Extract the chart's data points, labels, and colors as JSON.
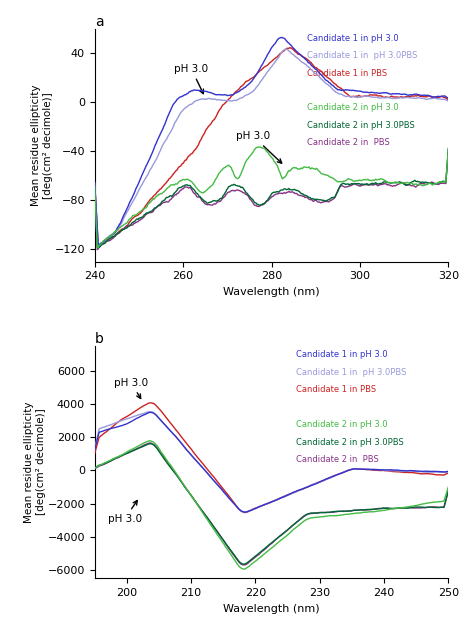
{
  "panel_a": {
    "title": "a",
    "xlabel": "Wavelength (nm)",
    "ylabel": "Mean residue ellipticity\n[deg(cm² decimole)]",
    "xlim": [
      240,
      320
    ],
    "ylim": [
      -130,
      60
    ],
    "yticks": [
      -120,
      -80,
      -40,
      0,
      40
    ],
    "legend_a1": [
      {
        "label": "Candidate 1 in pH 3.0",
        "color": "#3333cc"
      },
      {
        "label": "Candidate 1 in  pH 3.0PBS",
        "color": "#9999dd"
      },
      {
        "label": "Candidate 1 in PBS",
        "color": "#cc2222"
      }
    ],
    "legend_a2": [
      {
        "label": "Candidate 2 in pH 3.0",
        "color": "#44bb44"
      },
      {
        "label": "Candidate 2 in pH 3.0PBS",
        "color": "#006633"
      },
      {
        "label": "Candidate 2 in  PBS",
        "color": "#883388"
      }
    ]
  },
  "panel_b": {
    "title": "b",
    "xlabel": "Wavelength (nm)",
    "ylabel": "Mean residue ellipticity\n[deg(cm² decimole)]",
    "xlim": [
      195,
      250
    ],
    "ylim": [
      -6500,
      7500
    ],
    "yticks": [
      -6000,
      -4000,
      -2000,
      0,
      2000,
      4000,
      6000
    ],
    "legend_b1": [
      {
        "label": "Candidate 1 in pH 3.0",
        "color": "#3333cc"
      },
      {
        "label": "Candidate 1 in  pH 3.0PBS",
        "color": "#9999dd"
      },
      {
        "label": "Candidate 1 in PBS",
        "color": "#cc2222"
      }
    ],
    "legend_b2": [
      {
        "label": "Candidate 2 in pH 3.0",
        "color": "#44bb44"
      },
      {
        "label": "Candidate 2 in pH 3.0PBS",
        "color": "#006633"
      },
      {
        "label": "Candidate 2 in  PBS",
        "color": "#883388"
      }
    ]
  }
}
